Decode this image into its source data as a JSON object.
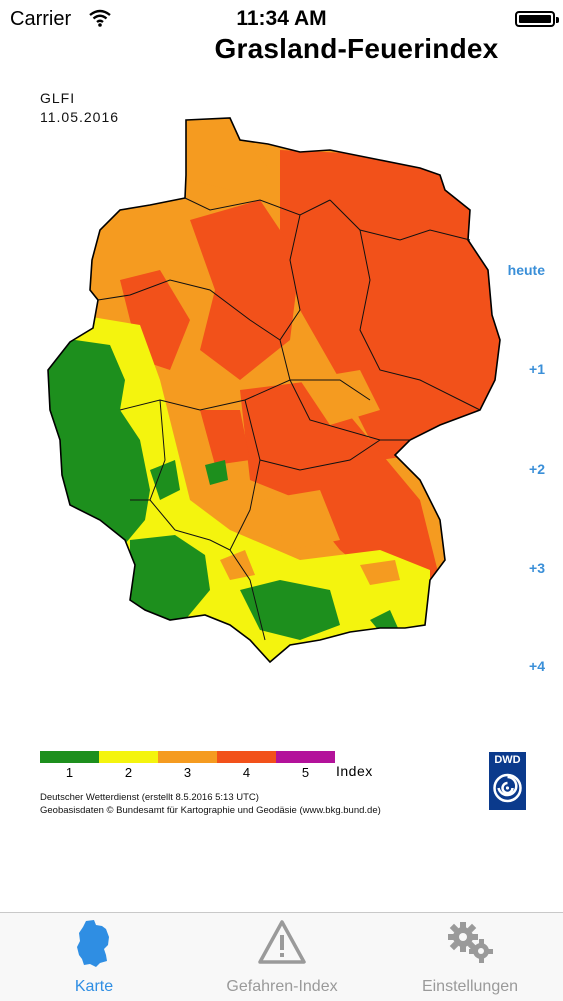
{
  "status_bar": {
    "carrier": "Carrier",
    "time": "11:34 AM"
  },
  "page": {
    "title": "Grasland-Feuerindex"
  },
  "map": {
    "code": "GLFI",
    "date": "11.05.2016",
    "legend": {
      "ticks": [
        "1",
        "2",
        "3",
        "4",
        "5"
      ],
      "unit": "Index",
      "colors": [
        "#1d8f1d",
        "#f4f40e",
        "#f59b20",
        "#f2511a",
        "#b3129a"
      ]
    },
    "credit_line_1": "Deutscher Wetterdienst (erstellt 8.5.2016 5:13 UTC)",
    "credit_line_2": "Geobasisdaten © Bundesamt für Kartographie und Geodäsie (www.bkg.bund.de)",
    "logo_text": "DWD"
  },
  "day_nav": [
    "heute",
    "+1",
    "+2",
    "+3",
    "+4"
  ],
  "tabs": [
    {
      "label": "Karte",
      "icon": "germany-map-icon",
      "active": true
    },
    {
      "label": "Gefahren-Index",
      "icon": "warning-triangle-icon",
      "active": false
    },
    {
      "label": "Einstellungen",
      "icon": "gears-icon",
      "active": false
    }
  ],
  "colors": {
    "accent": "#2f8ee3",
    "nav_link": "#3a8fd8"
  }
}
